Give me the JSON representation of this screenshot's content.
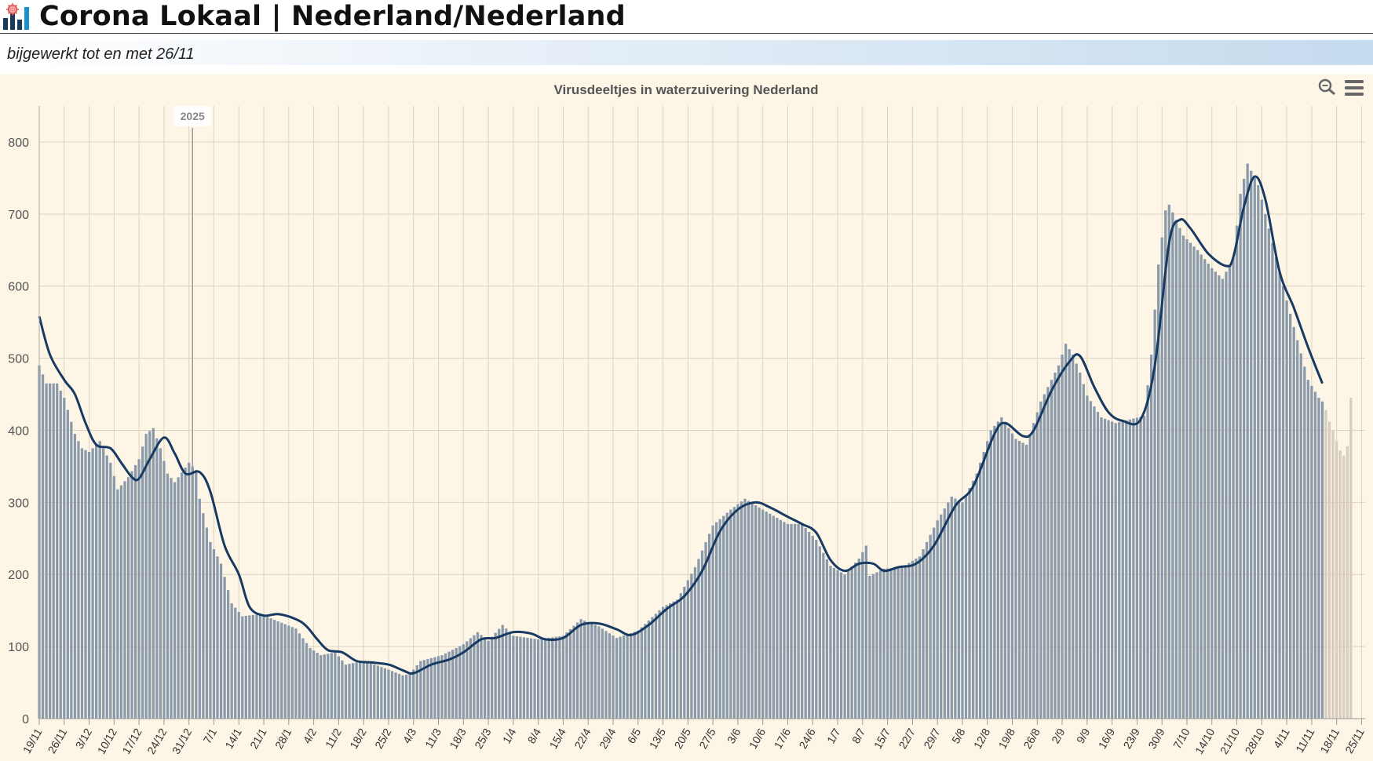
{
  "header": {
    "title": "Corona Lokaal | Nederland/Nederland",
    "subtitle": "bijgewerkt tot en met 26/11",
    "logo_icon": "bar-chart-virus-logo"
  },
  "toolbar": {
    "zoom_icon": "magnifier-icon",
    "menu_icon": "hamburger-menu-icon"
  },
  "colors": {
    "plot_bg": "#fdf5e6",
    "bar": "#8a9aab",
    "bar_pending": "#d6cdbf",
    "line": "#173a63",
    "grid": "#ddd2bf"
  },
  "chart_data": {
    "type": "bar",
    "title": "Virusdeeltjes in waterzuivering Nederland",
    "xlabel": "",
    "ylabel": "",
    "ylim": [
      0,
      850
    ],
    "yticks": [
      0,
      100,
      200,
      300,
      400,
      500,
      600,
      700,
      800
    ],
    "grid": true,
    "start_date": "2024-11-19",
    "end_date": "2025-11-26",
    "xtick_labels": [
      "19/11",
      "26/11",
      "3/12",
      "10/12",
      "17/12",
      "24/12",
      "31/12",
      "7/1",
      "14/1",
      "21/1",
      "28/1",
      "4/2",
      "11/2",
      "18/2",
      "25/2",
      "4/3",
      "11/3",
      "18/3",
      "25/3",
      "1/4",
      "8/4",
      "15/4",
      "22/4",
      "29/4",
      "6/5",
      "13/5",
      "20/5",
      "27/5",
      "3/6",
      "10/6",
      "17/6",
      "24/6",
      "1/7",
      "8/7",
      "15/7",
      "22/7",
      "29/7",
      "5/8",
      "12/8",
      "19/8",
      "26/8",
      "2/9",
      "9/9",
      "16/9",
      "23/9",
      "30/9",
      "7/10",
      "14/10",
      "21/10",
      "28/10",
      "4/11",
      "11/11",
      "18/11",
      "25/11"
    ],
    "annotation": {
      "label": "2025",
      "date": "2025-01-01"
    },
    "series": [
      {
        "kind": "bar",
        "anchors": [
          [
            "2024-11-19",
            490
          ],
          [
            "2024-11-21",
            465
          ],
          [
            "2024-11-24",
            465
          ],
          [
            "2024-11-26",
            445
          ],
          [
            "2024-11-29",
            395
          ],
          [
            "2024-12-01",
            375
          ],
          [
            "2024-12-03",
            370
          ],
          [
            "2024-12-06",
            385
          ],
          [
            "2024-12-09",
            355
          ],
          [
            "2024-12-11",
            318
          ],
          [
            "2024-12-14",
            335
          ],
          [
            "2024-12-17",
            360
          ],
          [
            "2024-12-19",
            395
          ],
          [
            "2024-12-21",
            403
          ],
          [
            "2024-12-23",
            375
          ],
          [
            "2024-12-25",
            340
          ],
          [
            "2024-12-27",
            328
          ],
          [
            "2024-12-31",
            355
          ],
          [
            "2025-01-02",
            345
          ],
          [
            "2025-01-03",
            305
          ],
          [
            "2025-01-06",
            245
          ],
          [
            "2025-01-09",
            215
          ],
          [
            "2025-01-12",
            160
          ],
          [
            "2025-01-15",
            142
          ],
          [
            "2025-01-20",
            145
          ],
          [
            "2025-01-25",
            135
          ],
          [
            "2025-01-30",
            125
          ],
          [
            "2025-02-03",
            98
          ],
          [
            "2025-02-06",
            88
          ],
          [
            "2025-02-10",
            92
          ],
          [
            "2025-02-13",
            75
          ],
          [
            "2025-02-18",
            80
          ],
          [
            "2025-02-24",
            70
          ],
          [
            "2025-03-01",
            60
          ],
          [
            "2025-03-03",
            62
          ],
          [
            "2025-03-06",
            80
          ],
          [
            "2025-03-12",
            88
          ],
          [
            "2025-03-18",
            103
          ],
          [
            "2025-03-22",
            120
          ],
          [
            "2025-03-25",
            108
          ],
          [
            "2025-03-29",
            130
          ],
          [
            "2025-04-01",
            115
          ],
          [
            "2025-04-08",
            110
          ],
          [
            "2025-04-15",
            115
          ],
          [
            "2025-04-20",
            138
          ],
          [
            "2025-04-25",
            128
          ],
          [
            "2025-04-30",
            112
          ],
          [
            "2025-05-06",
            122
          ],
          [
            "2025-05-13",
            155
          ],
          [
            "2025-05-17",
            165
          ],
          [
            "2025-05-22",
            210
          ],
          [
            "2025-05-27",
            268
          ],
          [
            "2025-06-01",
            290
          ],
          [
            "2025-06-05",
            305
          ],
          [
            "2025-06-10",
            290
          ],
          [
            "2025-06-17",
            270
          ],
          [
            "2025-06-21",
            270
          ],
          [
            "2025-06-25",
            248
          ],
          [
            "2025-06-29",
            212
          ],
          [
            "2025-07-03",
            200
          ],
          [
            "2025-07-07",
            222
          ],
          [
            "2025-07-09",
            240
          ],
          [
            "2025-07-10",
            198
          ],
          [
            "2025-07-14",
            208
          ],
          [
            "2025-07-19",
            210
          ],
          [
            "2025-07-24",
            225
          ],
          [
            "2025-07-29",
            275
          ],
          [
            "2025-08-02",
            308
          ],
          [
            "2025-08-05",
            300
          ],
          [
            "2025-08-09",
            340
          ],
          [
            "2025-08-13",
            400
          ],
          [
            "2025-08-16",
            418
          ],
          [
            "2025-08-20",
            388
          ],
          [
            "2025-08-23",
            380
          ],
          [
            "2025-08-27",
            440
          ],
          [
            "2025-08-30",
            470
          ],
          [
            "2025-09-01",
            490
          ],
          [
            "2025-09-03",
            520
          ],
          [
            "2025-09-05",
            505
          ],
          [
            "2025-09-07",
            480
          ],
          [
            "2025-09-09",
            448
          ],
          [
            "2025-09-13",
            418
          ],
          [
            "2025-09-17",
            410
          ],
          [
            "2025-09-25",
            420
          ],
          [
            "2025-09-27",
            505
          ],
          [
            "2025-09-29",
            630
          ],
          [
            "2025-10-01",
            705
          ],
          [
            "2025-10-02",
            713
          ],
          [
            "2025-10-06",
            670
          ],
          [
            "2025-10-10",
            650
          ],
          [
            "2025-10-14",
            625
          ],
          [
            "2025-10-17",
            610
          ],
          [
            "2025-10-20",
            640
          ],
          [
            "2025-10-22",
            728
          ],
          [
            "2025-10-24",
            770
          ],
          [
            "2025-10-27",
            740
          ],
          [
            "2025-10-29",
            700
          ],
          [
            "2025-11-01",
            640
          ],
          [
            "2025-11-04",
            580
          ],
          [
            "2025-11-07",
            525
          ],
          [
            "2025-11-10",
            470
          ],
          [
            "2025-11-13",
            445
          ],
          [
            "2025-11-14",
            440
          ]
        ]
      },
      {
        "kind": "bar-pending",
        "anchors": [
          [
            "2025-11-15",
            428
          ],
          [
            "2025-11-16",
            412
          ],
          [
            "2025-11-17",
            400
          ],
          [
            "2025-11-18",
            385
          ],
          [
            "2025-11-19",
            372
          ],
          [
            "2025-11-20",
            365
          ],
          [
            "2025-11-21",
            378
          ],
          [
            "2025-11-22",
            445
          ]
        ]
      },
      {
        "kind": "line",
        "points": [
          [
            "2024-11-19",
            558
          ],
          [
            "2024-11-22",
            505
          ],
          [
            "2024-11-26",
            470
          ],
          [
            "2024-11-29",
            450
          ],
          [
            "2024-12-02",
            410
          ],
          [
            "2024-12-05",
            380
          ],
          [
            "2024-12-09",
            375
          ],
          [
            "2024-12-12",
            355
          ],
          [
            "2024-12-15",
            335
          ],
          [
            "2024-12-17",
            333
          ],
          [
            "2024-12-20",
            360
          ],
          [
            "2024-12-24",
            390
          ],
          [
            "2024-12-27",
            368
          ],
          [
            "2024-12-30",
            340
          ],
          [
            "2025-01-03",
            342
          ],
          [
            "2025-01-06",
            315
          ],
          [
            "2025-01-10",
            240
          ],
          [
            "2025-01-14",
            200
          ],
          [
            "2025-01-17",
            155
          ],
          [
            "2025-01-21",
            143
          ],
          [
            "2025-01-25",
            145
          ],
          [
            "2025-01-30",
            138
          ],
          [
            "2025-02-02",
            128
          ],
          [
            "2025-02-05",
            110
          ],
          [
            "2025-02-08",
            95
          ],
          [
            "2025-02-12",
            92
          ],
          [
            "2025-02-16",
            80
          ],
          [
            "2025-02-20",
            78
          ],
          [
            "2025-02-25",
            75
          ],
          [
            "2025-03-01",
            67
          ],
          [
            "2025-03-04",
            63
          ],
          [
            "2025-03-09",
            75
          ],
          [
            "2025-03-14",
            82
          ],
          [
            "2025-03-18",
            92
          ],
          [
            "2025-03-23",
            110
          ],
          [
            "2025-03-27",
            112
          ],
          [
            "2025-04-01",
            120
          ],
          [
            "2025-04-06",
            118
          ],
          [
            "2025-04-10",
            110
          ],
          [
            "2025-04-15",
            112
          ],
          [
            "2025-04-20",
            130
          ],
          [
            "2025-04-25",
            132
          ],
          [
            "2025-04-30",
            124
          ],
          [
            "2025-05-04",
            116
          ],
          [
            "2025-05-09",
            130
          ],
          [
            "2025-05-14",
            152
          ],
          [
            "2025-05-19",
            170
          ],
          [
            "2025-05-24",
            205
          ],
          [
            "2025-05-29",
            260
          ],
          [
            "2025-06-03",
            290
          ],
          [
            "2025-06-08",
            300
          ],
          [
            "2025-06-12",
            293
          ],
          [
            "2025-06-17",
            280
          ],
          [
            "2025-06-21",
            270
          ],
          [
            "2025-06-25",
            258
          ],
          [
            "2025-06-29",
            220
          ],
          [
            "2025-07-03",
            205
          ],
          [
            "2025-07-07",
            215
          ],
          [
            "2025-07-11",
            215
          ],
          [
            "2025-07-14",
            205
          ],
          [
            "2025-07-18",
            210
          ],
          [
            "2025-07-23",
            215
          ],
          [
            "2025-07-28",
            240
          ],
          [
            "2025-08-03",
            295
          ],
          [
            "2025-08-08",
            322
          ],
          [
            "2025-08-14",
            395
          ],
          [
            "2025-08-17",
            410
          ],
          [
            "2025-08-22",
            392
          ],
          [
            "2025-08-25",
            400
          ],
          [
            "2025-08-30",
            455
          ],
          [
            "2025-09-04",
            495
          ],
          [
            "2025-09-07",
            503
          ],
          [
            "2025-09-11",
            460
          ],
          [
            "2025-09-15",
            425
          ],
          [
            "2025-09-19",
            413
          ],
          [
            "2025-09-24",
            415
          ],
          [
            "2025-09-28",
            490
          ],
          [
            "2025-10-02",
            660
          ],
          [
            "2025-10-05",
            692
          ],
          [
            "2025-10-08",
            680
          ],
          [
            "2025-10-13",
            645
          ],
          [
            "2025-10-18",
            628
          ],
          [
            "2025-10-20",
            640
          ],
          [
            "2025-10-23",
            710
          ],
          [
            "2025-10-26",
            752
          ],
          [
            "2025-10-29",
            720
          ],
          [
            "2025-11-02",
            620
          ],
          [
            "2025-11-06",
            570
          ],
          [
            "2025-11-10",
            515
          ],
          [
            "2025-11-14",
            465
          ]
        ]
      }
    ]
  }
}
